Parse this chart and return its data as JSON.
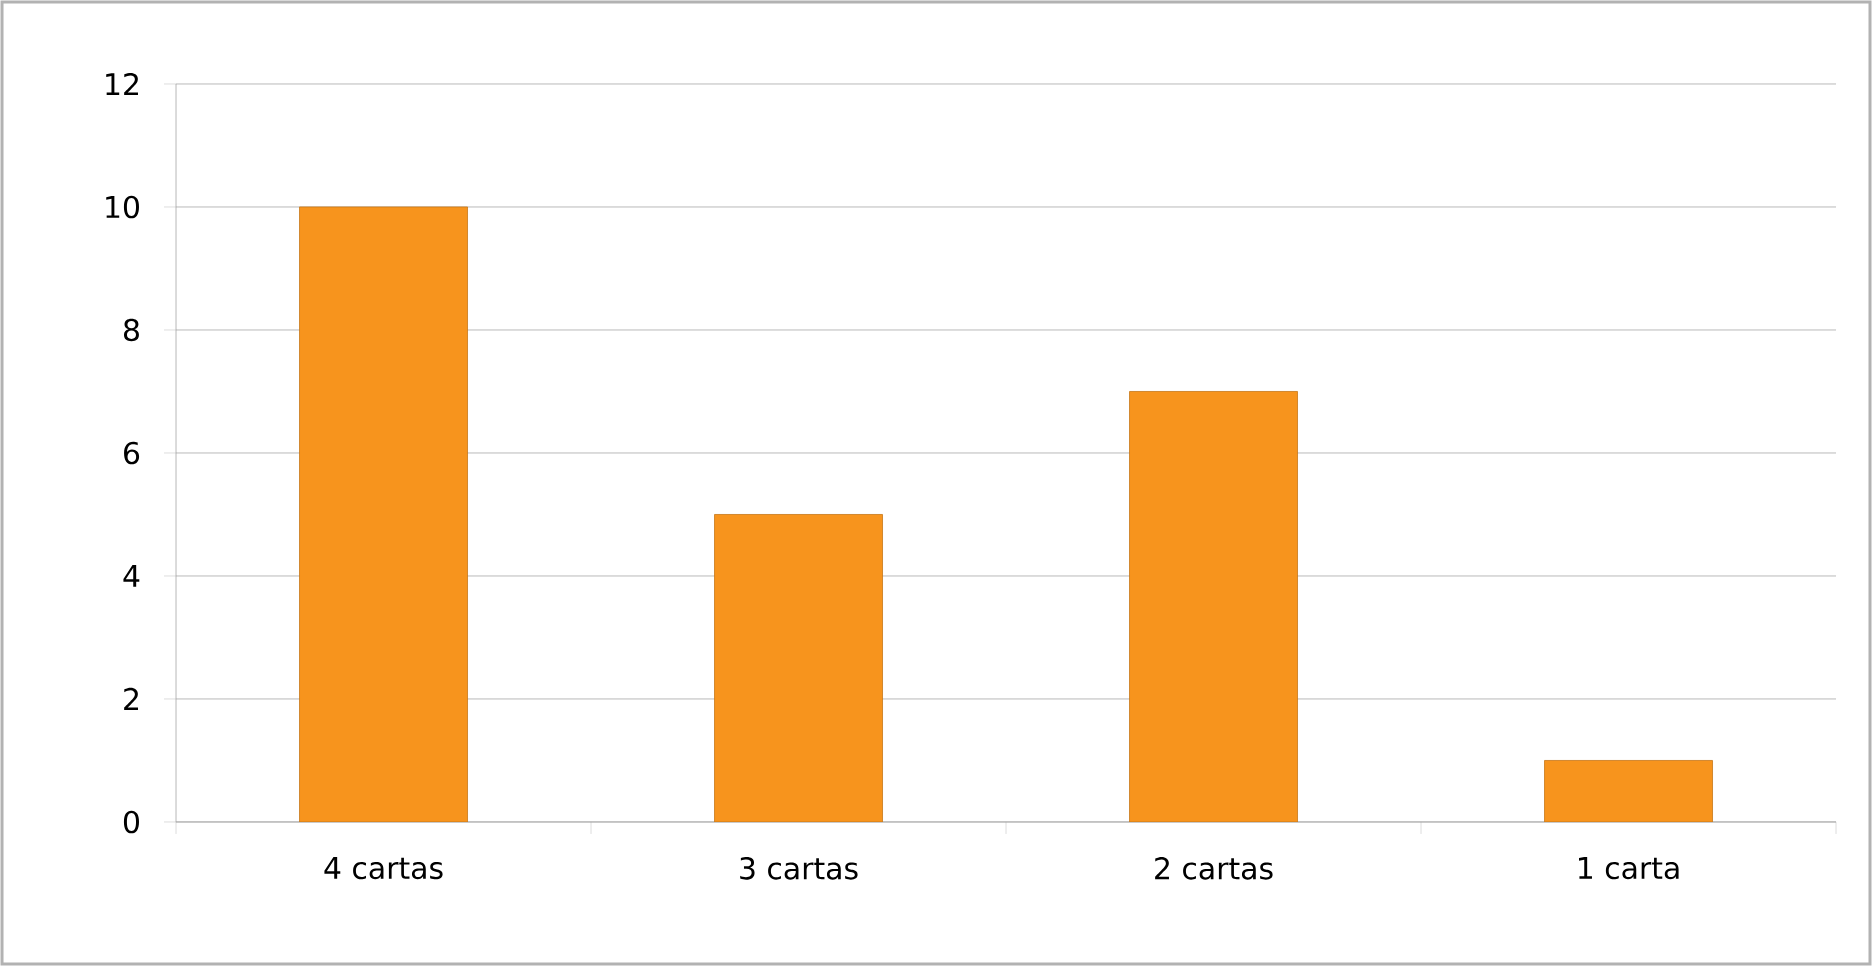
{
  "chart_data": {
    "type": "bar",
    "categories": [
      "4 cartas",
      "3 cartas",
      "2 cartas",
      "1 carta"
    ],
    "values": [
      10,
      5,
      7,
      1
    ],
    "color": "#f7941d",
    "ylim": [
      0,
      12
    ],
    "yticks": [
      0,
      2,
      4,
      6,
      8,
      10,
      12
    ],
    "grid": "y"
  }
}
